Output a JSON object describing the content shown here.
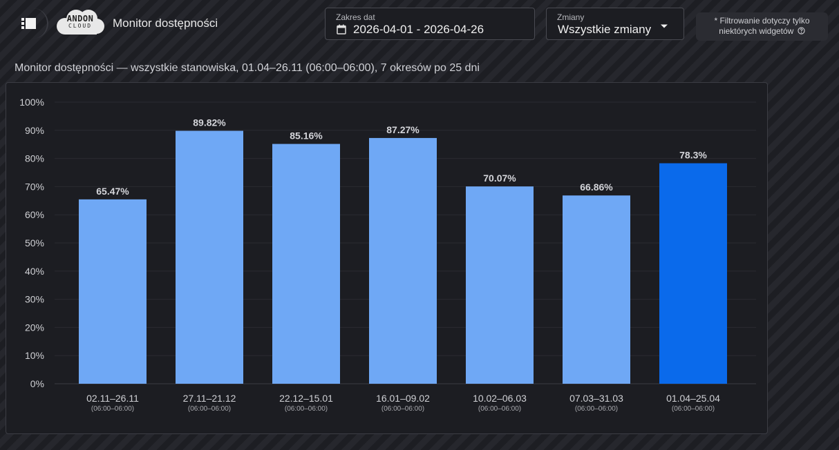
{
  "header": {
    "app_title": "Monitor dostępności",
    "logo_line1": "ANDON",
    "logo_line2": "CLOUD",
    "menu_icon": "menu-icon",
    "date_range": {
      "label": "Zakres dat",
      "value": "2026-04-01 - 2026-04-26",
      "icon": "calendar-icon"
    },
    "shifts": {
      "label": "Zmiany",
      "value": "Wszystkie zmiany",
      "icon": "chevron-down-icon"
    },
    "filter_note_line1": "* Filtrowanie dotyczy tylko",
    "filter_note_line2": "niektórych widgetów",
    "help_icon": "help-circle-icon"
  },
  "colors": {
    "bar": "#6fa8f5",
    "bar_highlight": "#0a6aeb",
    "background": "#1f2025",
    "card": "#1c1d22"
  },
  "chart_data": {
    "type": "bar",
    "title": "Monitor dostępności — wszystkie stanowiska, 01.04–26.11 (06:00–06:00), 7 okresów po 25 dni",
    "categories": [
      "02.11–26.11",
      "27.11–21.12",
      "22.12–15.01",
      "16.01–09.02",
      "10.02–06.03",
      "07.03–31.03",
      "01.04–25.04"
    ],
    "subcategories": [
      "(06:00–06:00)",
      "(06:00–06:00)",
      "(06:00–06:00)",
      "(06:00–06:00)",
      "(06:00–06:00)",
      "(06:00–06:00)",
      "(06:00–06:00)"
    ],
    "values": [
      65.47,
      89.82,
      85.16,
      87.27,
      70.07,
      66.86,
      78.3
    ],
    "value_labels": [
      "65.47%",
      "89.82%",
      "85.16%",
      "87.27%",
      "70.07%",
      "66.86%",
      "78.3%"
    ],
    "highlighted_index": 6,
    "ylim": [
      0,
      100
    ],
    "yticks": [
      "0%",
      "10%",
      "20%",
      "30%",
      "40%",
      "50%",
      "60%",
      "70%",
      "80%",
      "90%",
      "100%"
    ],
    "xlabel": "",
    "ylabel": "",
    "grid": true,
    "legend": false
  }
}
